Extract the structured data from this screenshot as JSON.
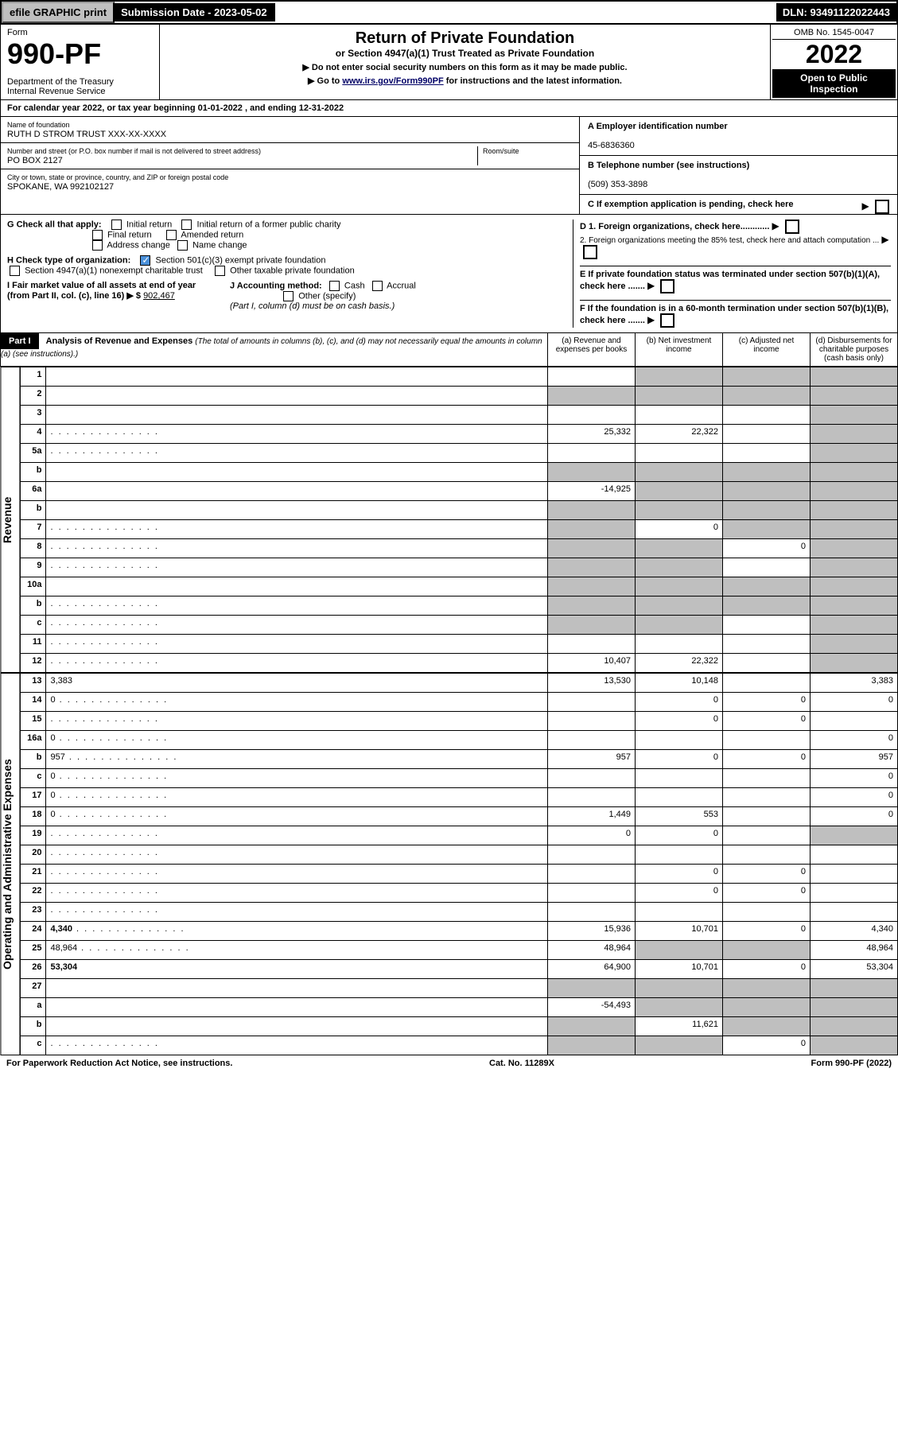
{
  "topbar": {
    "efile": "efile GRAPHIC print",
    "submission": "Submission Date - 2023-05-02",
    "dln": "DLN: 93491122022443"
  },
  "header": {
    "form_label": "Form",
    "form_num": "990-PF",
    "dept": "Department of the Treasury\nInternal Revenue Service",
    "title": "Return of Private Foundation",
    "subtitle": "or Section 4947(a)(1) Trust Treated as Private Foundation",
    "instr1": "▶ Do not enter social security numbers on this form as it may be made public.",
    "instr2_pre": "▶ Go to ",
    "instr2_link": "www.irs.gov/Form990PF",
    "instr2_post": " for instructions and the latest information.",
    "omb": "OMB No. 1545-0047",
    "year": "2022",
    "open": "Open to Public Inspection"
  },
  "calyear": "For calendar year 2022, or tax year beginning 01-01-2022             , and ending 12-31-2022",
  "identity": {
    "name_lbl": "Name of foundation",
    "name": "RUTH D STROM TRUST XXX-XX-XXXX",
    "addr_lbl": "Number and street (or P.O. box number if mail is not delivered to street address)",
    "addr": "PO BOX 2127",
    "room_lbl": "Room/suite",
    "city_lbl": "City or town, state or province, country, and ZIP or foreign postal code",
    "city": "SPOKANE, WA  992102127",
    "a_lbl": "A Employer identification number",
    "a_val": "45-6836360",
    "b_lbl": "B Telephone number (see instructions)",
    "b_val": "(509) 353-3898",
    "c_lbl": "C If exemption application is pending, check here"
  },
  "checks": {
    "g_lbl": "G Check all that apply:",
    "g_opts": [
      "Initial return",
      "Initial return of a former public charity",
      "Final return",
      "Amended return",
      "Address change",
      "Name change"
    ],
    "h_lbl": "H Check type of organization:",
    "h1": "Section 501(c)(3) exempt private foundation",
    "h2": "Section 4947(a)(1) nonexempt charitable trust",
    "h3": "Other taxable private foundation",
    "i_lbl": "I Fair market value of all assets at end of year (from Part II, col. (c), line 16) ▶ $",
    "i_val": "902,467",
    "j_lbl": "J Accounting method:",
    "j_cash": "Cash",
    "j_accrual": "Accrual",
    "j_other": "Other (specify)",
    "j_note": "(Part I, column (d) must be on cash basis.)",
    "d1": "D 1. Foreign organizations, check here............",
    "d2": "2. Foreign organizations meeting the 85% test, check here and attach computation ...",
    "e": "E  If private foundation status was terminated under section 507(b)(1)(A), check here .......",
    "f": "F  If the foundation is in a 60-month termination under section 507(b)(1)(B), check here ......."
  },
  "part1": {
    "label": "Part I",
    "title": "Analysis of Revenue and Expenses",
    "title_note": " (The total of amounts in columns (b), (c), and (d) may not necessarily equal the amounts in column (a) (see instructions).)",
    "cols": {
      "a": "(a) Revenue and expenses per books",
      "b": "(b) Net investment income",
      "c": "(c) Adjusted net income",
      "d": "(d) Disbursements for charitable purposes (cash basis only)"
    }
  },
  "revenue_label": "Revenue",
  "expense_label": "Operating and Administrative Expenses",
  "rows": [
    {
      "n": "1",
      "d": "",
      "a": "",
      "b": "",
      "c": "",
      "bs": true,
      "cs": true,
      "ds": true
    },
    {
      "n": "2",
      "d": "",
      "a": "",
      "b": "",
      "c": "",
      "as": true,
      "bs": true,
      "cs": true,
      "ds": true,
      "bold_not": true
    },
    {
      "n": "3",
      "d": "",
      "a": "",
      "b": "",
      "c": "",
      "ds": true
    },
    {
      "n": "4",
      "d": "",
      "a": "25,332",
      "b": "22,322",
      "c": "",
      "ds": true,
      "dots": true
    },
    {
      "n": "5a",
      "d": "",
      "a": "",
      "b": "",
      "c": "",
      "ds": true,
      "dots": true
    },
    {
      "n": "b",
      "d": "",
      "a": "",
      "b": "",
      "c": "",
      "as": true,
      "bs": true,
      "cs": true,
      "ds": true
    },
    {
      "n": "6a",
      "d": "",
      "a": "-14,925",
      "b": "",
      "c": "",
      "bs": true,
      "cs": true,
      "ds": true
    },
    {
      "n": "b",
      "d": "",
      "a": "",
      "b": "",
      "c": "",
      "as": true,
      "bs": true,
      "cs": true,
      "ds": true
    },
    {
      "n": "7",
      "d": "",
      "a": "",
      "b": "0",
      "c": "",
      "as": true,
      "cs": true,
      "ds": true,
      "dots": true
    },
    {
      "n": "8",
      "d": "",
      "a": "",
      "b": "",
      "c": "0",
      "as": true,
      "bs": true,
      "ds": true,
      "dots": true
    },
    {
      "n": "9",
      "d": "",
      "a": "",
      "b": "",
      "c": "",
      "as": true,
      "bs": true,
      "ds": true,
      "dots": true
    },
    {
      "n": "10a",
      "d": "",
      "a": "",
      "b": "",
      "c": "",
      "as": true,
      "bs": true,
      "cs": true,
      "ds": true
    },
    {
      "n": "b",
      "d": "",
      "a": "",
      "b": "",
      "c": "",
      "as": true,
      "bs": true,
      "cs": true,
      "ds": true,
      "dots": true
    },
    {
      "n": "c",
      "d": "",
      "a": "",
      "b": "",
      "c": "",
      "as": true,
      "bs": true,
      "ds": true,
      "dots": true
    },
    {
      "n": "11",
      "d": "",
      "a": "",
      "b": "",
      "c": "",
      "ds": true,
      "dots": true
    },
    {
      "n": "12",
      "d": "",
      "a": "10,407",
      "b": "22,322",
      "c": "",
      "ds": true,
      "bold": true,
      "dots": true
    }
  ],
  "exp_rows": [
    {
      "n": "13",
      "d": "3,383",
      "a": "13,530",
      "b": "10,148",
      "c": ""
    },
    {
      "n": "14",
      "d": "0",
      "a": "",
      "b": "0",
      "c": "0",
      "dots": true
    },
    {
      "n": "15",
      "d": "",
      "a": "",
      "b": "0",
      "c": "0",
      "dots": true
    },
    {
      "n": "16a",
      "d": "0",
      "a": "",
      "b": "",
      "c": "",
      "dots": true
    },
    {
      "n": "b",
      "d": "957",
      "a": "957",
      "b": "0",
      "c": "0",
      "dots": true
    },
    {
      "n": "c",
      "d": "0",
      "a": "",
      "b": "",
      "c": "",
      "dots": true
    },
    {
      "n": "17",
      "d": "0",
      "a": "",
      "b": "",
      "c": "",
      "dots": true
    },
    {
      "n": "18",
      "d": "0",
      "a": "1,449",
      "b": "553",
      "c": "",
      "dots": true
    },
    {
      "n": "19",
      "d": "",
      "a": "0",
      "b": "0",
      "c": "",
      "ds": true,
      "dots": true
    },
    {
      "n": "20",
      "d": "",
      "a": "",
      "b": "",
      "c": "",
      "dots": true
    },
    {
      "n": "21",
      "d": "",
      "a": "",
      "b": "0",
      "c": "0",
      "dots": true
    },
    {
      "n": "22",
      "d": "",
      "a": "",
      "b": "0",
      "c": "0",
      "dots": true
    },
    {
      "n": "23",
      "d": "",
      "a": "",
      "b": "",
      "c": "",
      "dots": true
    },
    {
      "n": "24",
      "d": "4,340",
      "a": "15,936",
      "b": "10,701",
      "c": "0",
      "bold": true,
      "dots": true
    },
    {
      "n": "25",
      "d": "48,964",
      "a": "48,964",
      "b": "",
      "c": "",
      "bs": true,
      "cs": true,
      "dots": true
    },
    {
      "n": "26",
      "d": "53,304",
      "a": "64,900",
      "b": "10,701",
      "c": "0",
      "bold": true
    },
    {
      "n": "27",
      "d": "",
      "a": "",
      "b": "",
      "c": "",
      "as": true,
      "bs": true,
      "cs": true,
      "ds": true
    },
    {
      "n": "a",
      "d": "",
      "a": "-54,493",
      "b": "",
      "c": "",
      "bs": true,
      "cs": true,
      "ds": true,
      "bold": true
    },
    {
      "n": "b",
      "d": "",
      "a": "",
      "b": "11,621",
      "c": "",
      "as": true,
      "cs": true,
      "ds": true,
      "bold": true
    },
    {
      "n": "c",
      "d": "",
      "a": "",
      "b": "",
      "c": "0",
      "as": true,
      "bs": true,
      "ds": true,
      "bold": true,
      "dots": true
    }
  ],
  "footer": {
    "left": "For Paperwork Reduction Act Notice, see instructions.",
    "mid": "Cat. No. 11289X",
    "right": "Form 990-PF (2022)"
  },
  "colors": {
    "shaded": "#bfbfbf",
    "link": "#0000cc",
    "check": "#4a90d9"
  }
}
